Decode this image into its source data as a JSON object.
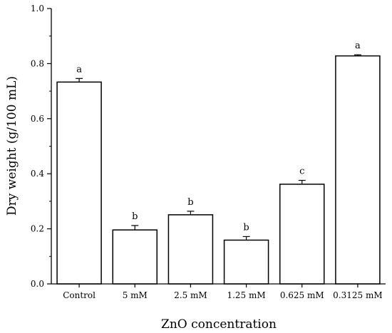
{
  "chart_data": {
    "type": "bar",
    "title": "",
    "xlabel": "ZnO concentration",
    "ylabel": "Dry weight (g/100 mL)",
    "ylim": [
      0.0,
      1.0
    ],
    "yticks": [
      0.0,
      0.2,
      0.4,
      0.6,
      0.8,
      1.0
    ],
    "ytick_labels": [
      "0.0",
      "0.2",
      "0.4",
      "0.6",
      "0.8",
      "1.0"
    ],
    "categories": [
      "Control",
      "5 mM",
      "2.5 mM",
      "1.25 mM",
      "0.625 mM",
      "0.3125 mM"
    ],
    "values": [
      0.733,
      0.196,
      0.251,
      0.159,
      0.362,
      0.828
    ],
    "errors": [
      0.013,
      0.016,
      0.013,
      0.013,
      0.014,
      0.004
    ],
    "significance_letters": [
      "a",
      "b",
      "b",
      "b",
      "c",
      "a"
    ],
    "grid": false,
    "bar_fill": "#ffffff",
    "bar_stroke": "#000000"
  }
}
